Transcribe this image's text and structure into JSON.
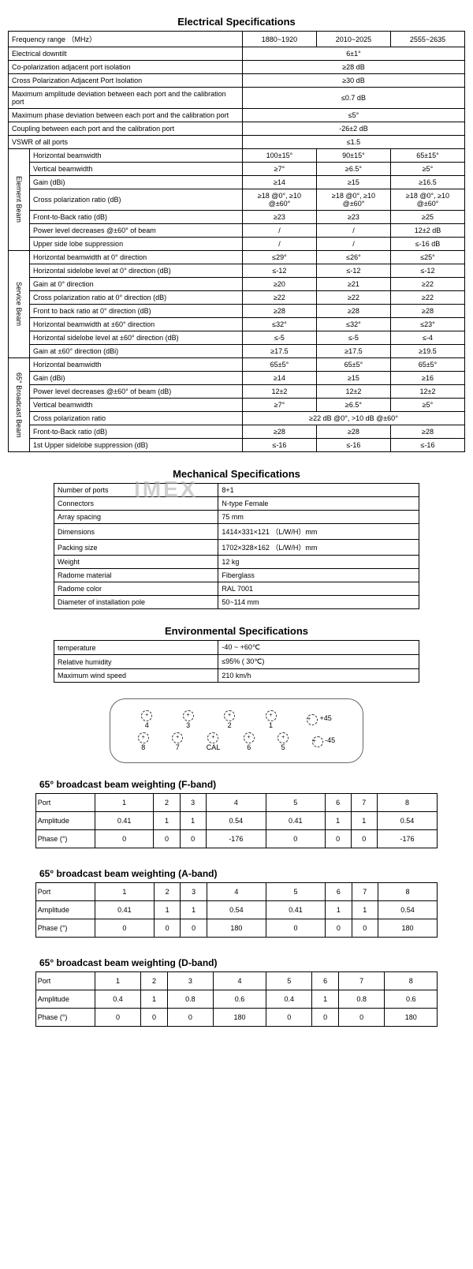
{
  "titles": {
    "electrical": "Electrical Specifications",
    "mechanical": "Mechanical Specifications",
    "environmental": "Environmental Specifications"
  },
  "freq_cols": [
    "1880~1920",
    "2010~2025",
    "2555~2635"
  ],
  "elec_top": [
    {
      "label": "Frequency range （MHz）",
      "span": false
    },
    {
      "label": "Electrical downtilt",
      "val": "6±1°"
    },
    {
      "label": "Co-polarization adjacent port isolation",
      "val": "≥28 dB"
    },
    {
      "label": "Cross Polarization Adjacent Port Isolation",
      "val": "≥30 dB"
    },
    {
      "label": "Maximum amplitude deviation between each port and the calibration port",
      "val": "≤0.7 dB"
    },
    {
      "label": "Maximum phase deviation between each port and the calibration port",
      "val": "≤5°"
    },
    {
      "label": "Coupling between each port and the calibration port",
      "val": "-26±2 dB"
    },
    {
      "label": "VSWR of all ports",
      "val": "≤1.5"
    }
  ],
  "groups": [
    {
      "name": "Element Beam",
      "rows": [
        {
          "l": "Horizontal beamwidth",
          "v": [
            "100±15°",
            "90±15°",
            "65±15°"
          ]
        },
        {
          "l": "Vertical beamwidth",
          "v": [
            "≥7°",
            "≥6.5°",
            "≥5°"
          ]
        },
        {
          "l": "Gain (dBi)",
          "v": [
            "≥14",
            "≥15",
            "≥16.5"
          ]
        },
        {
          "l": "Cross polarization ratio (dB)",
          "v": [
            "≥18 @0°, ≥10 @±60°",
            "≥18 @0°, ≥10 @±60°",
            "≥18 @0°, ≥10 @±60°"
          ]
        },
        {
          "l": "Front-to-Back ratio (dB)",
          "v": [
            "≥23",
            "≥23",
            "≥25"
          ]
        },
        {
          "l": "Power level decreases @±60° of beam",
          "v": [
            "/",
            "/",
            "12±2 dB"
          ]
        },
        {
          "l": "Upper side lobe suppression",
          "v": [
            "/",
            "/",
            "≤-16 dB"
          ]
        }
      ]
    },
    {
      "name": "Service Beam",
      "rows": [
        {
          "l": "Horizontal beamwidth at 0° direction",
          "v": [
            "≤29°",
            "≤26°",
            "≤25°"
          ]
        },
        {
          "l": "Horizontal sidelobe level at 0° direction (dB)",
          "v": [
            "≤-12",
            "≤-12",
            "≤-12"
          ]
        },
        {
          "l": "Gain at 0° direction",
          "v": [
            "≥20",
            "≥21",
            "≥22"
          ]
        },
        {
          "l": "Cross polarization ratio at 0° direction (dB)",
          "v": [
            "≥22",
            "≥22",
            "≥22"
          ]
        },
        {
          "l": "Front to back ratio at 0° direction (dB)",
          "v": [
            "≥28",
            "≥28",
            "≥28"
          ]
        },
        {
          "l": "Horizontal beamwidth at ±60° direction",
          "v": [
            "≤32°",
            "≤32°",
            "≤23°"
          ]
        },
        {
          "l": "Horizontal sidelobe level at ±60° direction (dB)",
          "v": [
            "≤-5",
            "≤-5",
            "≤-4"
          ]
        },
        {
          "l": "Gain at ±60° direction (dBi)",
          "v": [
            "≥17.5",
            "≥17.5",
            "≥19.5"
          ]
        }
      ]
    },
    {
      "name": "65° Broadcast Beam",
      "rows": [
        {
          "l": "Horizontal beamwidth",
          "v": [
            "65±5°",
            "65±5°",
            "65±5°"
          ]
        },
        {
          "l": "Gain (dBi)",
          "v": [
            "≥14",
            "≥15",
            "≥16"
          ]
        },
        {
          "l": "Power level decreases @±60° of beam (dB)",
          "v": [
            "12±2",
            "12±2",
            "12±2"
          ]
        },
        {
          "l": "Vertical beamwidth",
          "v": [
            "≥7°",
            "≥6.5°",
            "≥5°"
          ]
        },
        {
          "l": "Cross polarization ratio",
          "merged": "≥22 dB @0°,  >10 dB   @±60°"
        },
        {
          "l": "Front-to-Back ratio (dB)",
          "v": [
            "≥28",
            "≥28",
            "≥28"
          ]
        },
        {
          "l": "1st Upper sidelobe suppression (dB)",
          "v": [
            "≤-16",
            "≤-16",
            "≤-16"
          ]
        }
      ]
    }
  ],
  "mech": [
    [
      "Number of ports",
      "8+1"
    ],
    [
      "Connectors",
      "N-type Female"
    ],
    [
      "Array spacing",
      "75 mm"
    ],
    [
      "Dimensions",
      "1414×331×121 （L/W/H）mm"
    ],
    [
      "Packing size",
      "1702×328×162 （L/W/H）mm"
    ],
    [
      "Weight",
      "12 kg"
    ],
    [
      "Radome material",
      "Fiberglass"
    ],
    [
      "Radome color",
      "RAL 7001"
    ],
    [
      "Diameter of installation pole",
      "50~114 mm"
    ]
  ],
  "env": [
    [
      "temperature",
      "-40 ~ +60℃"
    ],
    [
      "Relative humidity",
      "≤95% ( 30℃)"
    ],
    [
      "Maximum wind speed",
      "210 km/h"
    ]
  ],
  "ports": {
    "top": [
      {
        "n": "4"
      },
      {
        "n": "3"
      },
      {
        "n": "2"
      },
      {
        "n": "1"
      }
    ],
    "top_label": "+45",
    "bot": [
      {
        "n": "8"
      },
      {
        "n": "7"
      },
      {
        "n": "CAL"
      },
      {
        "n": "6"
      },
      {
        "n": "5"
      }
    ],
    "bot_label": "-45"
  },
  "weight_headers": [
    "Port",
    "1",
    "2",
    "3",
    "4",
    "5",
    "6",
    "7",
    "8"
  ],
  "weights": [
    {
      "title": "65° broadcast beam weighting (F-band)",
      "rows": [
        [
          "Amplitude",
          "0.41",
          "1",
          "1",
          "0.54",
          "0.41",
          "1",
          "1",
          "0.54"
        ],
        [
          "Phase (°)",
          "0",
          "0",
          "0",
          "-176",
          "0",
          "0",
          "0",
          "-176"
        ]
      ]
    },
    {
      "title": "65° broadcast beam weighting (A-band)",
      "rows": [
        [
          "Amplitude",
          "0.41",
          "1",
          "1",
          "0.54",
          "0.41",
          "1",
          "1",
          "0.54"
        ],
        [
          "Phase (°)",
          "0",
          "0",
          "0",
          "180",
          "0",
          "0",
          "0",
          "180"
        ]
      ]
    },
    {
      "title": "65° broadcast beam weighting (D-band)",
      "rows": [
        [
          "Amplitude",
          "0.4",
          "1",
          "0.8",
          "0.6",
          "0.4",
          "1",
          "0.8",
          "0.6"
        ],
        [
          "Phase (°)",
          "0",
          "0",
          "0",
          "180",
          "0",
          "0",
          "0",
          "180"
        ]
      ]
    }
  ],
  "watermark": "IMEX"
}
